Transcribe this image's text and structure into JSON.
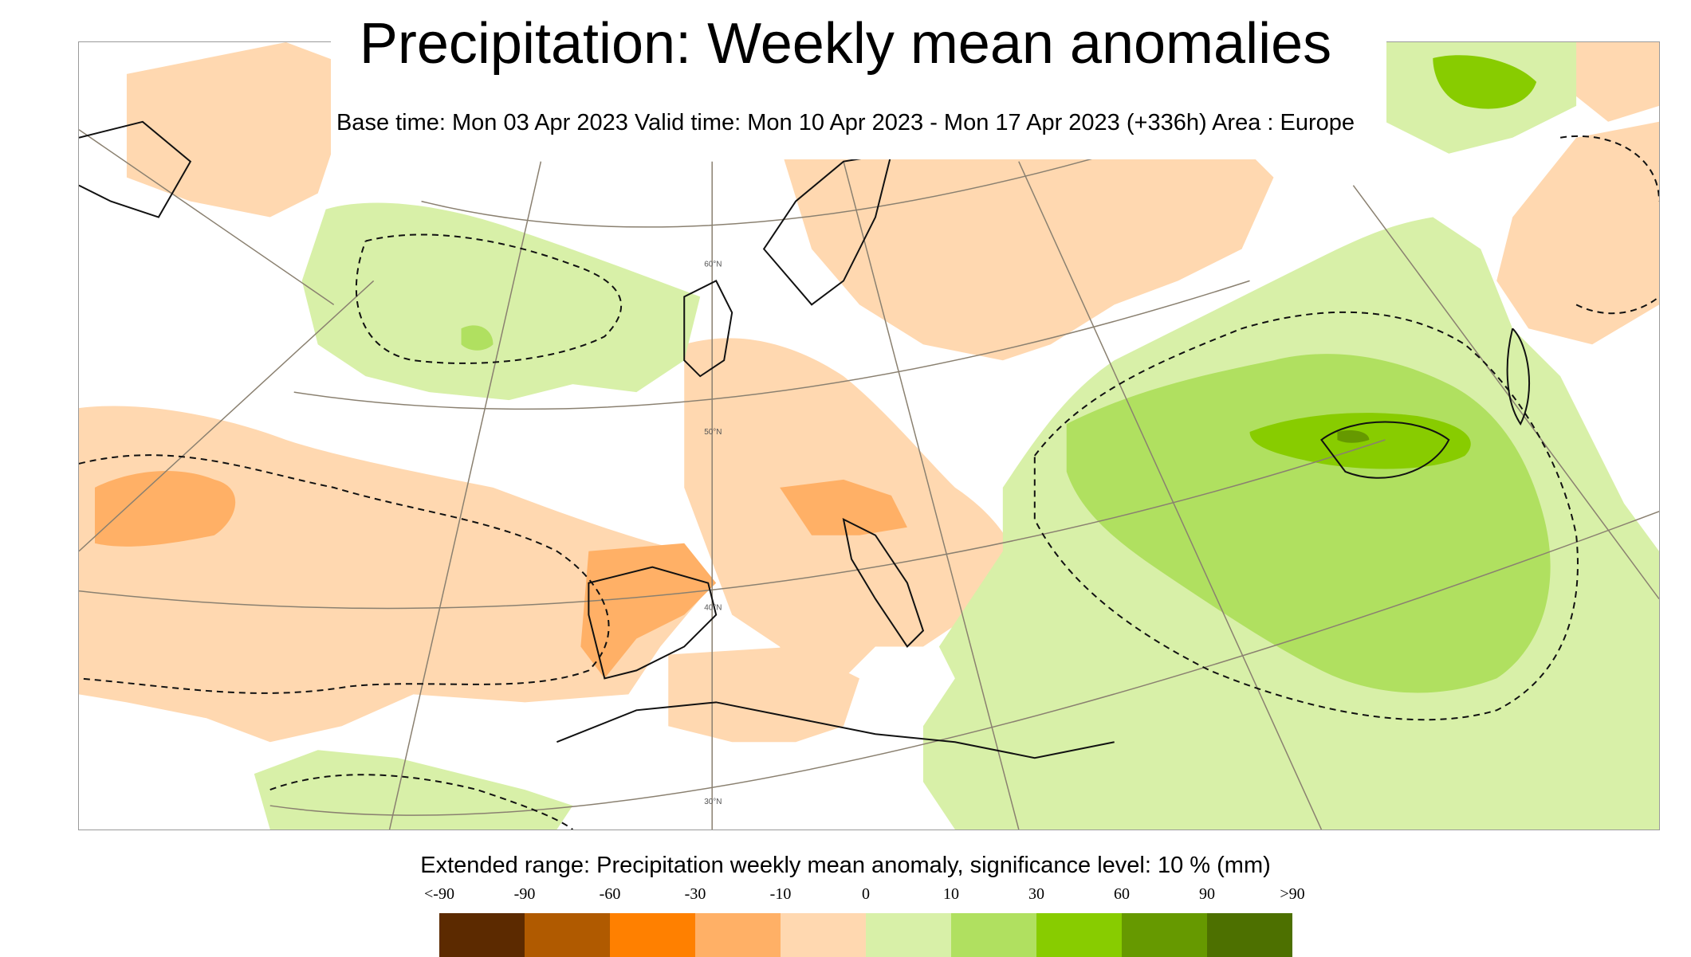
{
  "title": "Precipitation: Weekly mean anomalies",
  "subtitle": "Base time: Mon 03 Apr 2023 Valid time: Mon 10 Apr 2023 - Mon 17 Apr 2023 (+336h) Area : Europe",
  "legend": {
    "title": "Extended range: Precipitation weekly mean anomaly, significance level: 10 % (mm)",
    "ticks": [
      "<-90",
      "-90",
      "-60",
      "-30",
      "-10",
      "0",
      "10",
      "30",
      "60",
      "90",
      ">90"
    ],
    "colors": [
      "#5c2a00",
      "#b05a00",
      "#ff8000",
      "#ffb066",
      "#ffd8b0",
      "#d8f0a8",
      "#b0e060",
      "#88cc00",
      "#669900",
      "#4d7000"
    ]
  },
  "map": {
    "lat_labels": [
      "60°N",
      "50°N",
      "40°N",
      "30°N"
    ],
    "colors": {
      "dry_light": "#ffd8b0",
      "dry_mid": "#ffb066",
      "wet_light": "#d8f0a8",
      "wet_mid": "#b0e060",
      "wet_strong": "#88cc00",
      "wet_dark": "#669900"
    }
  }
}
